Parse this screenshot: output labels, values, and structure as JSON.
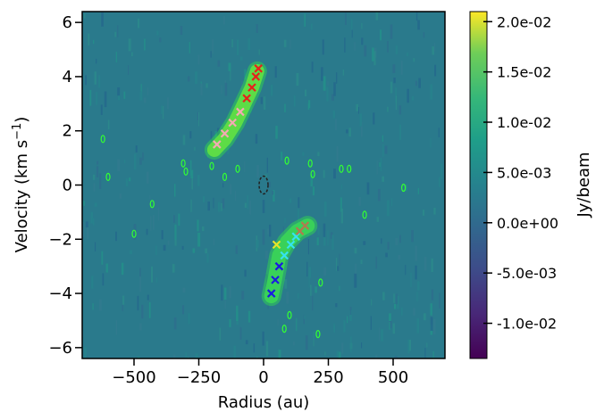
{
  "chart_data": {
    "type": "heatmap",
    "xlabel": "Radius (au)",
    "ylabel": "Velocity (km s",
    "ylabel_sup": "−1",
    "ylabel_close": ")",
    "xlim": [
      -700,
      700
    ],
    "ylim": [
      -6.4,
      6.4
    ],
    "x_ticks": [
      -500,
      -250,
      0,
      250,
      500
    ],
    "x_tick_labels": [
      "−500",
      "−250",
      "0",
      "250",
      "500"
    ],
    "y_ticks": [
      -6,
      -4,
      -2,
      0,
      2,
      4,
      6
    ],
    "y_tick_labels": [
      "−6",
      "−4",
      "−2",
      "0",
      "2",
      "4",
      "6"
    ],
    "colormap": "viridis",
    "background_color": "#2a7a8c",
    "colorbar": {
      "label": "Jy/beam",
      "range": [
        -0.0135,
        0.021
      ],
      "ticks": [
        -0.01,
        -0.005,
        0.0,
        0.005,
        0.01,
        0.015,
        0.02
      ],
      "tick_labels": [
        "-1.0e-02",
        "-5.0e-03",
        "0.0e+00",
        "5.0e-03",
        "1.0e-02",
        "1.5e-02",
        "2.0e-02"
      ]
    },
    "features": {
      "upper_lobe": {
        "color": "#7cd24a",
        "points": [
          [
            -190,
            1.3
          ],
          [
            -150,
            1.7
          ],
          [
            -110,
            2.3
          ],
          [
            -75,
            3.0
          ],
          [
            -45,
            3.6
          ],
          [
            -25,
            4.2
          ]
        ]
      },
      "lower_lobe": {
        "color": "#3fbf6a",
        "points": [
          [
            30,
            -4.1
          ],
          [
            45,
            -3.4
          ],
          [
            60,
            -2.6
          ],
          [
            90,
            -2.1
          ],
          [
            130,
            -1.7
          ],
          [
            170,
            -1.5
          ]
        ]
      },
      "contour_color": "#33ff33",
      "center_dashed_contour": {
        "x": 0,
        "y": 0,
        "color": "#222222"
      },
      "markers": [
        {
          "name": "pink-marker",
          "color": "#f4a9b4",
          "points": [
            [
              -180,
              1.5
            ],
            [
              -150,
              1.9
            ],
            [
              -120,
              2.3
            ],
            [
              -90,
              2.7
            ]
          ]
        },
        {
          "name": "red-marker",
          "color": "#e8201c",
          "points": [
            [
              -65,
              3.2
            ],
            [
              -45,
              3.6
            ],
            [
              -30,
              4.0
            ],
            [
              -20,
              4.3
            ]
          ]
        },
        {
          "name": "cyan-marker",
          "color": "#35e2f0",
          "points": [
            [
              80,
              -2.6
            ],
            [
              105,
              -2.2
            ],
            [
              125,
              -1.9
            ]
          ]
        },
        {
          "name": "blue-marker",
          "color": "#1b1be0",
          "points": [
            [
              30,
              -4.0
            ],
            [
              45,
              -3.5
            ],
            [
              60,
              -3.0
            ]
          ]
        },
        {
          "name": "brown-marker",
          "color": "#b07a50",
          "points": [
            [
              140,
              -1.7
            ],
            [
              160,
              -1.5
            ]
          ]
        },
        {
          "name": "yellow-marker",
          "color": "#e6e22a",
          "points": [
            [
              50,
              -2.2
            ]
          ]
        }
      ]
    }
  }
}
